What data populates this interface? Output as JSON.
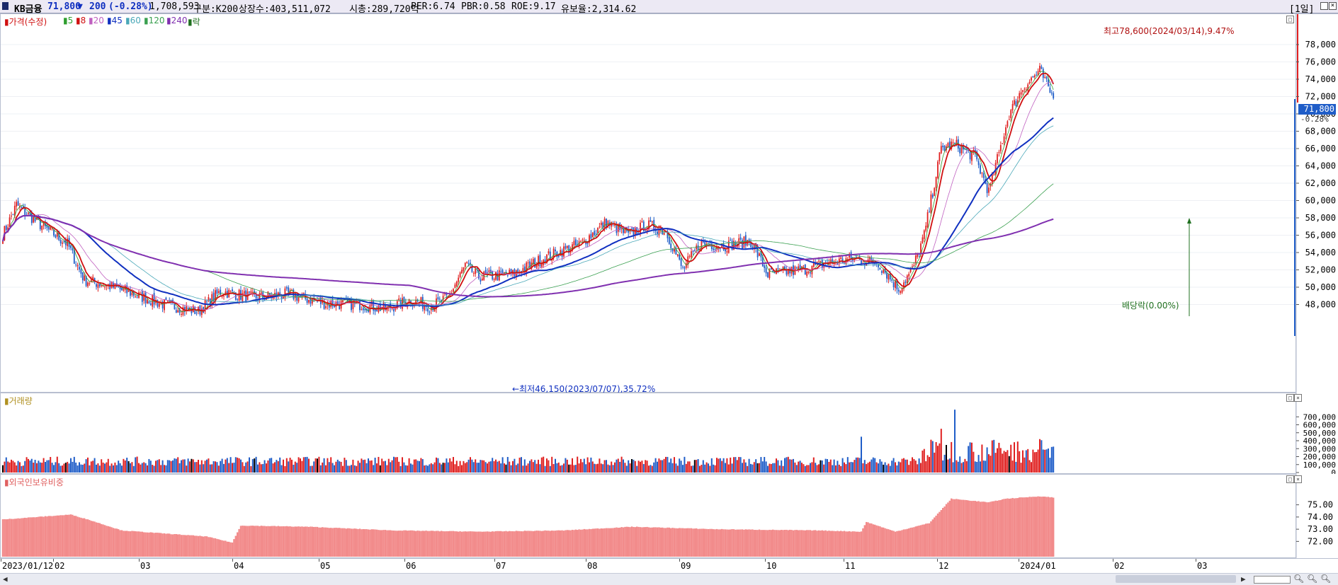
{
  "header": {
    "name": "KB금융",
    "price": "71,800",
    "change_arrow": "▼",
    "change": "200",
    "change_pct": "(-0.28%)",
    "volume": "1,708,593",
    "market": "구분:K200",
    "shares": "상장수:403,511,072",
    "cap": "시총:289,720억",
    "per": "PER:6.74",
    "pbr": "PBR:0.58",
    "roe": "ROE:9.17",
    "float": "유보율:2,314.62",
    "period": "[1일]"
  },
  "price_panel": {
    "legend": [
      "가격(수정)",
      "5",
      "8",
      "20",
      "45",
      "60",
      "120",
      "240",
      "락"
    ],
    "legend_colors": [
      "#d01010",
      "#2e9e2e",
      "#d01010",
      "#c060c0",
      "#1030c0",
      "#4aa8b8",
      "#3aa050",
      "#8030b0",
      "#207020"
    ],
    "high_label": "최고78,600(2024/03/14),9.47%",
    "low_label": "최저46,150(2023/07/07),35.72%",
    "lock_label": "배당락(0.00%)",
    "y_ticks": [
      "78,000",
      "76,000",
      "74,000",
      "72,000",
      "70,000",
      "68,000",
      "66,000",
      "64,000",
      "62,000",
      "60,000",
      "58,000",
      "56,000",
      "54,000",
      "52,000",
      "50,000",
      "48,000"
    ],
    "current_tag": "71,800",
    "current_pct": "-0.28%"
  },
  "volume_panel": {
    "title": "거래량",
    "y_ticks": [
      "700,000",
      "600,000",
      "500,000",
      "400,000",
      "300,000",
      "200,000",
      "100,000",
      "0"
    ]
  },
  "foreign_panel": {
    "title": "외국인보유비중",
    "y_ticks": [
      "75.00",
      "74.00",
      "73.00",
      "72.00"
    ]
  },
  "x_labels": [
    "2023/01/12",
    "02",
    "03",
    "04",
    "05",
    "06",
    "07",
    "08",
    "09",
    "10",
    "11",
    "12",
    "2024/01",
    "02",
    "03"
  ],
  "chart_data": {
    "type": "candlestick",
    "price_anchors": [
      [
        0,
        56000
      ],
      [
        8,
        59500
      ],
      [
        20,
        57500
      ],
      [
        38,
        55000
      ],
      [
        48,
        50800
      ],
      [
        62,
        50200
      ],
      [
        80,
        49000
      ],
      [
        95,
        48000
      ],
      [
        115,
        47200
      ],
      [
        128,
        49500
      ],
      [
        148,
        48800
      ],
      [
        168,
        49200
      ],
      [
        190,
        48100
      ],
      [
        210,
        48000
      ],
      [
        225,
        47500
      ],
      [
        240,
        48500
      ],
      [
        252,
        47800
      ],
      [
        262,
        48800
      ],
      [
        272,
        52500
      ],
      [
        280,
        51200
      ],
      [
        300,
        51500
      ],
      [
        320,
        53500
      ],
      [
        340,
        55000
      ],
      [
        355,
        57500
      ],
      [
        368,
        56000
      ],
      [
        378,
        57200
      ],
      [
        390,
        56500
      ],
      [
        400,
        52000
      ],
      [
        410,
        55000
      ],
      [
        425,
        54800
      ],
      [
        440,
        55300
      ],
      [
        450,
        51500
      ],
      [
        470,
        52000
      ],
      [
        485,
        52800
      ],
      [
        500,
        53300
      ],
      [
        515,
        52800
      ],
      [
        527,
        49800
      ],
      [
        535,
        52000
      ],
      [
        542,
        56000
      ],
      [
        552,
        66000
      ],
      [
        560,
        66500
      ],
      [
        572,
        65000
      ],
      [
        580,
        61000
      ],
      [
        592,
        70000
      ],
      [
        600,
        73000
      ],
      [
        610,
        75000
      ],
      [
        618,
        71800
      ]
    ],
    "volume_range": [
      0,
      800000
    ],
    "foreign_anchors": [
      [
        0,
        73.8
      ],
      [
        20,
        74.0
      ],
      [
        40,
        74.2
      ],
      [
        50,
        73.8
      ],
      [
        70,
        72.9
      ],
      [
        100,
        72.6
      ],
      [
        120,
        72.4
      ],
      [
        135,
        71.9
      ],
      [
        140,
        73.3
      ],
      [
        180,
        73.2
      ],
      [
        230,
        72.9
      ],
      [
        280,
        72.8
      ],
      [
        330,
        72.9
      ],
      [
        370,
        73.2
      ],
      [
        420,
        73.0
      ],
      [
        480,
        72.9
      ],
      [
        505,
        72.8
      ],
      [
        508,
        73.6
      ],
      [
        525,
        72.8
      ],
      [
        545,
        73.5
      ],
      [
        558,
        75.5
      ],
      [
        580,
        75.2
      ],
      [
        590,
        75.5
      ],
      [
        610,
        75.7
      ],
      [
        618,
        75.6
      ]
    ]
  }
}
